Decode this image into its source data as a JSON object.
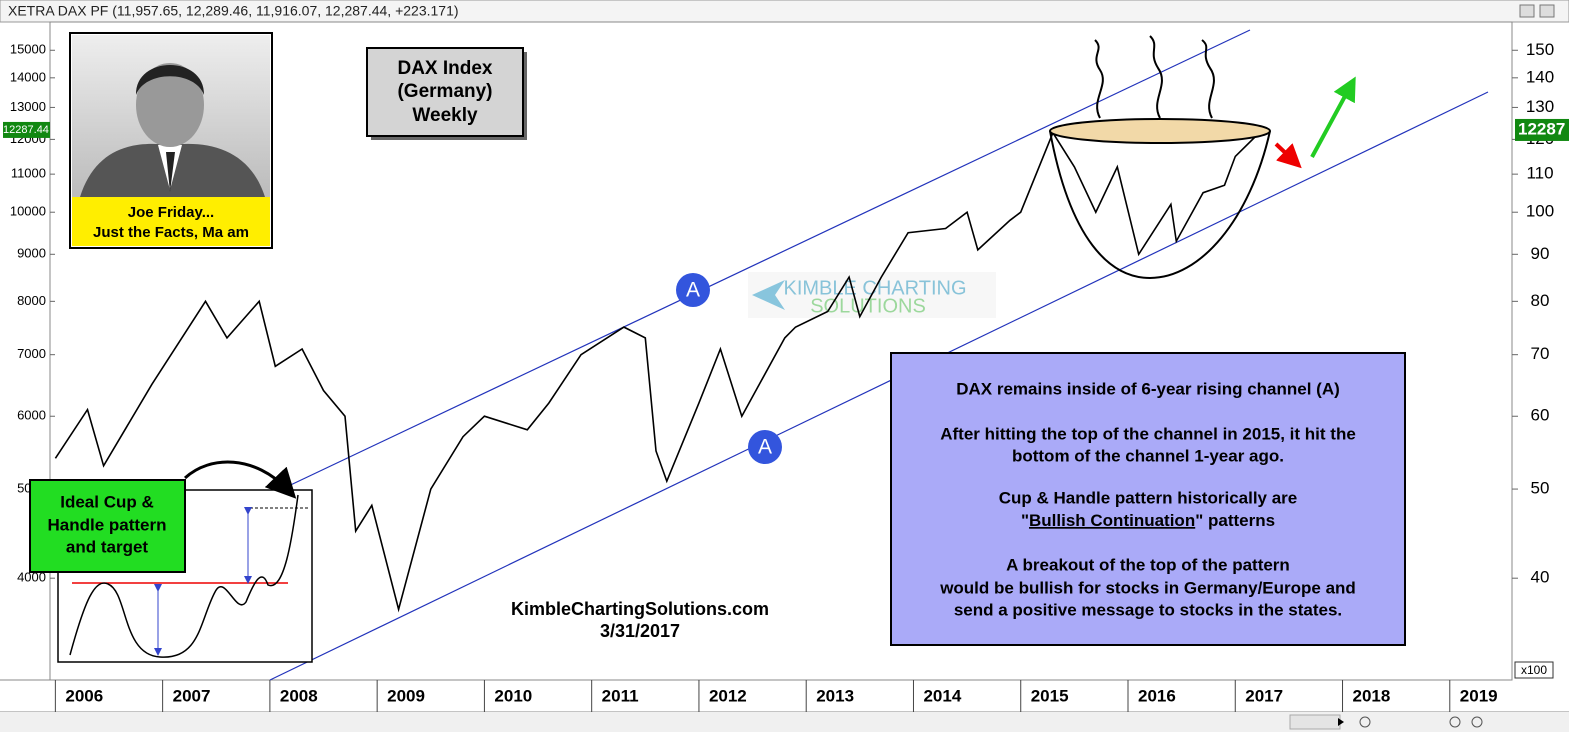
{
  "chart_data": {
    "type": "line",
    "title": "XETRA DAX PF (11,957.65, 12,289.46, 11,916.07, 12,287.44, +223.171)",
    "x": [
      2006.0,
      2006.3,
      2006.45,
      2006.9,
      2007.4,
      2007.6,
      2007.9,
      2008.05,
      2008.3,
      2008.5,
      2008.7,
      2008.8,
      2008.95,
      2009.2,
      2009.5,
      2009.8,
      2010.0,
      2010.4,
      2010.6,
      2010.9,
      2011.3,
      2011.5,
      2011.6,
      2011.7,
      2012.0,
      2012.2,
      2012.4,
      2012.8,
      2012.9,
      2013.2,
      2013.4,
      2013.5,
      2013.7,
      2013.95,
      2014.3,
      2014.5,
      2014.6,
      2014.9,
      2015.0,
      2015.3,
      2015.5,
      2015.7,
      2015.9,
      2016.1,
      2016.4,
      2016.45,
      2016.7,
      2016.9,
      2017.0,
      2017.25
    ],
    "values": [
      5400,
      6100,
      5300,
      6500,
      8000,
      7300,
      8000,
      6800,
      7100,
      6400,
      6000,
      4500,
      4800,
      3700,
      5000,
      5700,
      6000,
      5800,
      6200,
      7000,
      7500,
      7300,
      5500,
      5100,
      6200,
      7100,
      6000,
      7300,
      7500,
      7800,
      8500,
      7700,
      8500,
      9500,
      9600,
      10000,
      9100,
      9800,
      10000,
      12200,
      11200,
      10000,
      11200,
      9000,
      10200,
      9300,
      10500,
      10700,
      11500,
      12287
    ],
    "color": "#000000",
    "log_scale": true,
    "grid": false,
    "xlim": [
      2005.95,
      2019.58
    ],
    "xticks": [
      2006,
      2007,
      2008,
      2009,
      2010,
      2011,
      2012,
      2013,
      2014,
      2015,
      2016,
      2017,
      2018,
      2019
    ],
    "ylim": [
      3100,
      16100
    ],
    "yticks": [
      4000,
      5000,
      6000,
      7000,
      8000,
      9000,
      10000,
      11000,
      12000,
      13000,
      14000,
      15000
    ],
    "y2lim": [
      31,
      161
    ],
    "y2ticks": [
      40,
      50,
      60,
      70,
      80,
      90,
      100,
      110,
      120,
      130,
      140,
      150
    ],
    "y2label": "x100",
    "last_price": {
      "value": 12287.44,
      "label": "12287.44"
    },
    "last_price_right": {
      "value": 12287,
      "label": "12287"
    },
    "annotations": {
      "title_box": [
        "DAX Index",
        "(Germany)",
        "Weekly"
      ],
      "photo_caption": [
        "Joe Friday...",
        "Just the Facts, Ma am"
      ],
      "pattern_box": [
        "Ideal Cup &",
        "Handle pattern",
        "and target"
      ],
      "channel_label": "A",
      "watermark": [
        "KIMBLE CHARTING",
        "SOLUTIONS"
      ],
      "source": [
        "KimbleChartingSolutions.com",
        "3/31/2017"
      ],
      "note": {
        "line1": "DAX remains inside of 6-year rising channel (A)",
        "line2": "After hitting the top of the channel  in 2015, it hit the",
        "line3": "bottom of the channel 1-year ago.",
        "line4": "Cup & Handle pattern historically are",
        "line5_open": "\"",
        "line5_underlined": "Bullish Continuation",
        "line5_close": "\" patterns",
        "line6": "A breakout of the top of the pattern",
        "line7": "would be bullish for stocks in Germany/Europe and",
        "line8": "send a positive message to stocks in the states."
      }
    }
  }
}
